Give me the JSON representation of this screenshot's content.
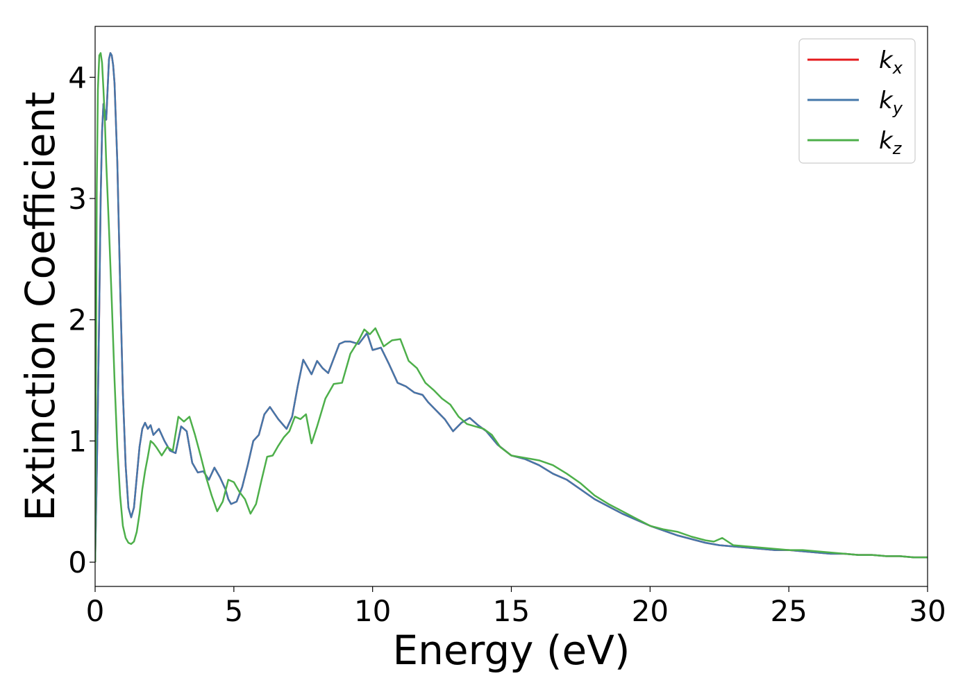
{
  "chart_data": {
    "type": "line",
    "title": "",
    "xlabel": "Energy (eV)",
    "ylabel": "Extinction Coefficient",
    "xlim": [
      0,
      30
    ],
    "ylim": [
      -0.2,
      4.42
    ],
    "xticks": [
      0,
      5,
      10,
      15,
      20,
      25,
      30
    ],
    "yticks": [
      0,
      1,
      2,
      3,
      4
    ],
    "grid": false,
    "legend_position": "top-right",
    "series": [
      {
        "name": "k_x",
        "label_base": "k",
        "label_sub": "x",
        "color": "#e41a1c",
        "x": [
          0.0,
          0.05,
          0.1,
          0.15,
          0.2,
          0.25,
          0.3,
          0.35,
          0.4,
          0.45,
          0.5,
          0.55,
          0.6,
          0.65,
          0.7,
          0.8,
          0.9,
          1.0,
          1.1,
          1.2,
          1.3,
          1.4,
          1.5,
          1.6,
          1.7,
          1.8,
          1.9,
          2.0,
          2.1,
          2.3,
          2.5,
          2.7,
          2.9,
          3.1,
          3.3,
          3.4,
          3.5,
          3.7,
          3.9,
          4.1,
          4.3,
          4.5,
          4.7,
          4.8,
          4.9,
          5.1,
          5.3,
          5.5,
          5.7,
          5.9,
          6.1,
          6.3,
          6.6,
          6.9,
          7.1,
          7.3,
          7.5,
          7.8,
          8.0,
          8.2,
          8.4,
          8.6,
          8.8,
          9.0,
          9.2,
          9.5,
          9.8,
          10.0,
          10.3,
          10.6,
          10.9,
          11.2,
          11.5,
          11.8,
          12.0,
          12.3,
          12.6,
          12.9,
          13.2,
          13.5,
          13.8,
          14.1,
          14.5,
          15.0,
          15.5,
          16.0,
          16.5,
          17.0,
          17.5,
          18.0,
          18.5,
          19.0,
          19.5,
          20.0,
          20.5,
          21.0,
          21.5,
          22.0,
          22.5,
          23.0,
          23.5,
          24.0,
          24.5,
          25.0,
          25.5,
          26.0,
          26.5,
          27.0,
          27.5,
          28.0,
          28.5,
          29.0,
          29.5,
          30.0
        ],
        "y": [
          0.0,
          0.6,
          1.3,
          2.1,
          3.0,
          3.55,
          3.78,
          3.72,
          3.65,
          3.9,
          4.15,
          4.2,
          4.18,
          4.1,
          3.95,
          3.3,
          2.3,
          1.4,
          0.8,
          0.45,
          0.37,
          0.45,
          0.7,
          0.95,
          1.1,
          1.15,
          1.1,
          1.13,
          1.05,
          1.1,
          1.0,
          0.92,
          0.9,
          1.12,
          1.08,
          0.95,
          0.82,
          0.74,
          0.75,
          0.68,
          0.78,
          0.7,
          0.6,
          0.52,
          0.48,
          0.5,
          0.62,
          0.8,
          1.0,
          1.05,
          1.22,
          1.28,
          1.18,
          1.1,
          1.2,
          1.45,
          1.67,
          1.55,
          1.66,
          1.6,
          1.56,
          1.68,
          1.8,
          1.82,
          1.82,
          1.8,
          1.89,
          1.75,
          1.77,
          1.63,
          1.48,
          1.45,
          1.4,
          1.38,
          1.32,
          1.25,
          1.18,
          1.08,
          1.15,
          1.19,
          1.13,
          1.08,
          0.97,
          0.88,
          0.85,
          0.8,
          0.73,
          0.68,
          0.6,
          0.52,
          0.46,
          0.4,
          0.35,
          0.3,
          0.26,
          0.22,
          0.19,
          0.16,
          0.14,
          0.13,
          0.12,
          0.11,
          0.1,
          0.1,
          0.09,
          0.08,
          0.07,
          0.07,
          0.06,
          0.06,
          0.05,
          0.05,
          0.04,
          0.04
        ],
        "line_width": 2.5
      },
      {
        "name": "k_y",
        "label_base": "k",
        "label_sub": "y",
        "color": "#4477aa",
        "x": [
          0.0,
          0.05,
          0.1,
          0.15,
          0.2,
          0.25,
          0.3,
          0.35,
          0.4,
          0.45,
          0.5,
          0.55,
          0.6,
          0.65,
          0.7,
          0.8,
          0.9,
          1.0,
          1.1,
          1.2,
          1.3,
          1.4,
          1.5,
          1.6,
          1.7,
          1.8,
          1.9,
          2.0,
          2.1,
          2.3,
          2.5,
          2.7,
          2.9,
          3.1,
          3.3,
          3.4,
          3.5,
          3.7,
          3.9,
          4.1,
          4.3,
          4.5,
          4.7,
          4.8,
          4.9,
          5.1,
          5.3,
          5.5,
          5.7,
          5.9,
          6.1,
          6.3,
          6.6,
          6.9,
          7.1,
          7.3,
          7.5,
          7.8,
          8.0,
          8.2,
          8.4,
          8.6,
          8.8,
          9.0,
          9.2,
          9.5,
          9.8,
          10.0,
          10.3,
          10.6,
          10.9,
          11.2,
          11.5,
          11.8,
          12.0,
          12.3,
          12.6,
          12.9,
          13.2,
          13.5,
          13.8,
          14.1,
          14.5,
          15.0,
          15.5,
          16.0,
          16.5,
          17.0,
          17.5,
          18.0,
          18.5,
          19.0,
          19.5,
          20.0,
          20.5,
          21.0,
          21.5,
          22.0,
          22.5,
          23.0,
          23.5,
          24.0,
          24.5,
          25.0,
          25.5,
          26.0,
          26.5,
          27.0,
          27.5,
          28.0,
          28.5,
          29.0,
          29.5,
          30.0
        ],
        "y": [
          0.0,
          0.6,
          1.3,
          2.1,
          3.0,
          3.55,
          3.78,
          3.72,
          3.65,
          3.9,
          4.15,
          4.2,
          4.18,
          4.1,
          3.95,
          3.3,
          2.3,
          1.4,
          0.8,
          0.45,
          0.37,
          0.45,
          0.7,
          0.95,
          1.1,
          1.15,
          1.1,
          1.13,
          1.05,
          1.1,
          1.0,
          0.92,
          0.9,
          1.12,
          1.08,
          0.95,
          0.82,
          0.74,
          0.75,
          0.68,
          0.78,
          0.7,
          0.6,
          0.52,
          0.48,
          0.5,
          0.62,
          0.8,
          1.0,
          1.05,
          1.22,
          1.28,
          1.18,
          1.1,
          1.2,
          1.45,
          1.67,
          1.55,
          1.66,
          1.6,
          1.56,
          1.68,
          1.8,
          1.82,
          1.82,
          1.8,
          1.89,
          1.75,
          1.77,
          1.63,
          1.48,
          1.45,
          1.4,
          1.38,
          1.32,
          1.25,
          1.18,
          1.08,
          1.15,
          1.19,
          1.13,
          1.08,
          0.97,
          0.88,
          0.85,
          0.8,
          0.73,
          0.68,
          0.6,
          0.52,
          0.46,
          0.4,
          0.35,
          0.3,
          0.26,
          0.22,
          0.19,
          0.16,
          0.14,
          0.13,
          0.12,
          0.11,
          0.1,
          0.1,
          0.09,
          0.08,
          0.07,
          0.07,
          0.06,
          0.06,
          0.05,
          0.05,
          0.04,
          0.04
        ],
        "line_width": 2.5
      },
      {
        "name": "k_z",
        "label_base": "k",
        "label_sub": "z",
        "color": "#4daf4a",
        "x": [
          0.0,
          0.03,
          0.06,
          0.1,
          0.15,
          0.2,
          0.25,
          0.3,
          0.35,
          0.4,
          0.5,
          0.6,
          0.7,
          0.8,
          0.9,
          1.0,
          1.1,
          1.2,
          1.3,
          1.4,
          1.5,
          1.6,
          1.7,
          1.8,
          1.9,
          2.0,
          2.1,
          2.2,
          2.4,
          2.6,
          2.8,
          3.0,
          3.2,
          3.4,
          3.6,
          3.8,
          4.0,
          4.2,
          4.4,
          4.6,
          4.8,
          5.0,
          5.2,
          5.4,
          5.6,
          5.8,
          6.0,
          6.2,
          6.4,
          6.6,
          6.8,
          7.0,
          7.2,
          7.4,
          7.6,
          7.8,
          8.0,
          8.3,
          8.6,
          8.9,
          9.2,
          9.5,
          9.7,
          9.9,
          10.1,
          10.4,
          10.7,
          11.0,
          11.3,
          11.6,
          11.9,
          12.2,
          12.5,
          12.8,
          13.1,
          13.4,
          13.7,
          14.0,
          14.3,
          14.6,
          15.0,
          15.5,
          16.0,
          16.5,
          17.0,
          17.5,
          18.0,
          18.5,
          19.0,
          19.5,
          20.0,
          20.5,
          21.0,
          21.5,
          22.0,
          22.3,
          22.6,
          23.0,
          23.5,
          24.0,
          24.5,
          25.0,
          25.5,
          26.0,
          26.5,
          27.0,
          27.5,
          28.0,
          28.5,
          29.0,
          29.5,
          30.0
        ],
        "y": [
          0.0,
          1.5,
          3.1,
          3.9,
          4.18,
          4.2,
          4.12,
          3.9,
          3.65,
          3.3,
          2.75,
          2.15,
          1.5,
          0.95,
          0.55,
          0.3,
          0.2,
          0.16,
          0.15,
          0.17,
          0.25,
          0.4,
          0.6,
          0.75,
          0.87,
          1.0,
          0.98,
          0.95,
          0.88,
          0.95,
          0.92,
          1.2,
          1.16,
          1.2,
          1.05,
          0.88,
          0.7,
          0.55,
          0.42,
          0.5,
          0.68,
          0.66,
          0.58,
          0.52,
          0.4,
          0.48,
          0.68,
          0.87,
          0.88,
          0.96,
          1.03,
          1.08,
          1.2,
          1.18,
          1.22,
          0.98,
          1.12,
          1.35,
          1.47,
          1.48,
          1.72,
          1.83,
          1.92,
          1.88,
          1.93,
          1.78,
          1.83,
          1.84,
          1.66,
          1.6,
          1.48,
          1.42,
          1.35,
          1.3,
          1.2,
          1.14,
          1.12,
          1.1,
          1.05,
          0.95,
          0.88,
          0.86,
          0.84,
          0.8,
          0.73,
          0.65,
          0.55,
          0.48,
          0.42,
          0.36,
          0.3,
          0.27,
          0.25,
          0.21,
          0.18,
          0.17,
          0.2,
          0.14,
          0.13,
          0.12,
          0.11,
          0.1,
          0.1,
          0.09,
          0.08,
          0.07,
          0.06,
          0.06,
          0.05,
          0.05,
          0.04,
          0.04
        ],
        "line_width": 2.5
      }
    ]
  }
}
